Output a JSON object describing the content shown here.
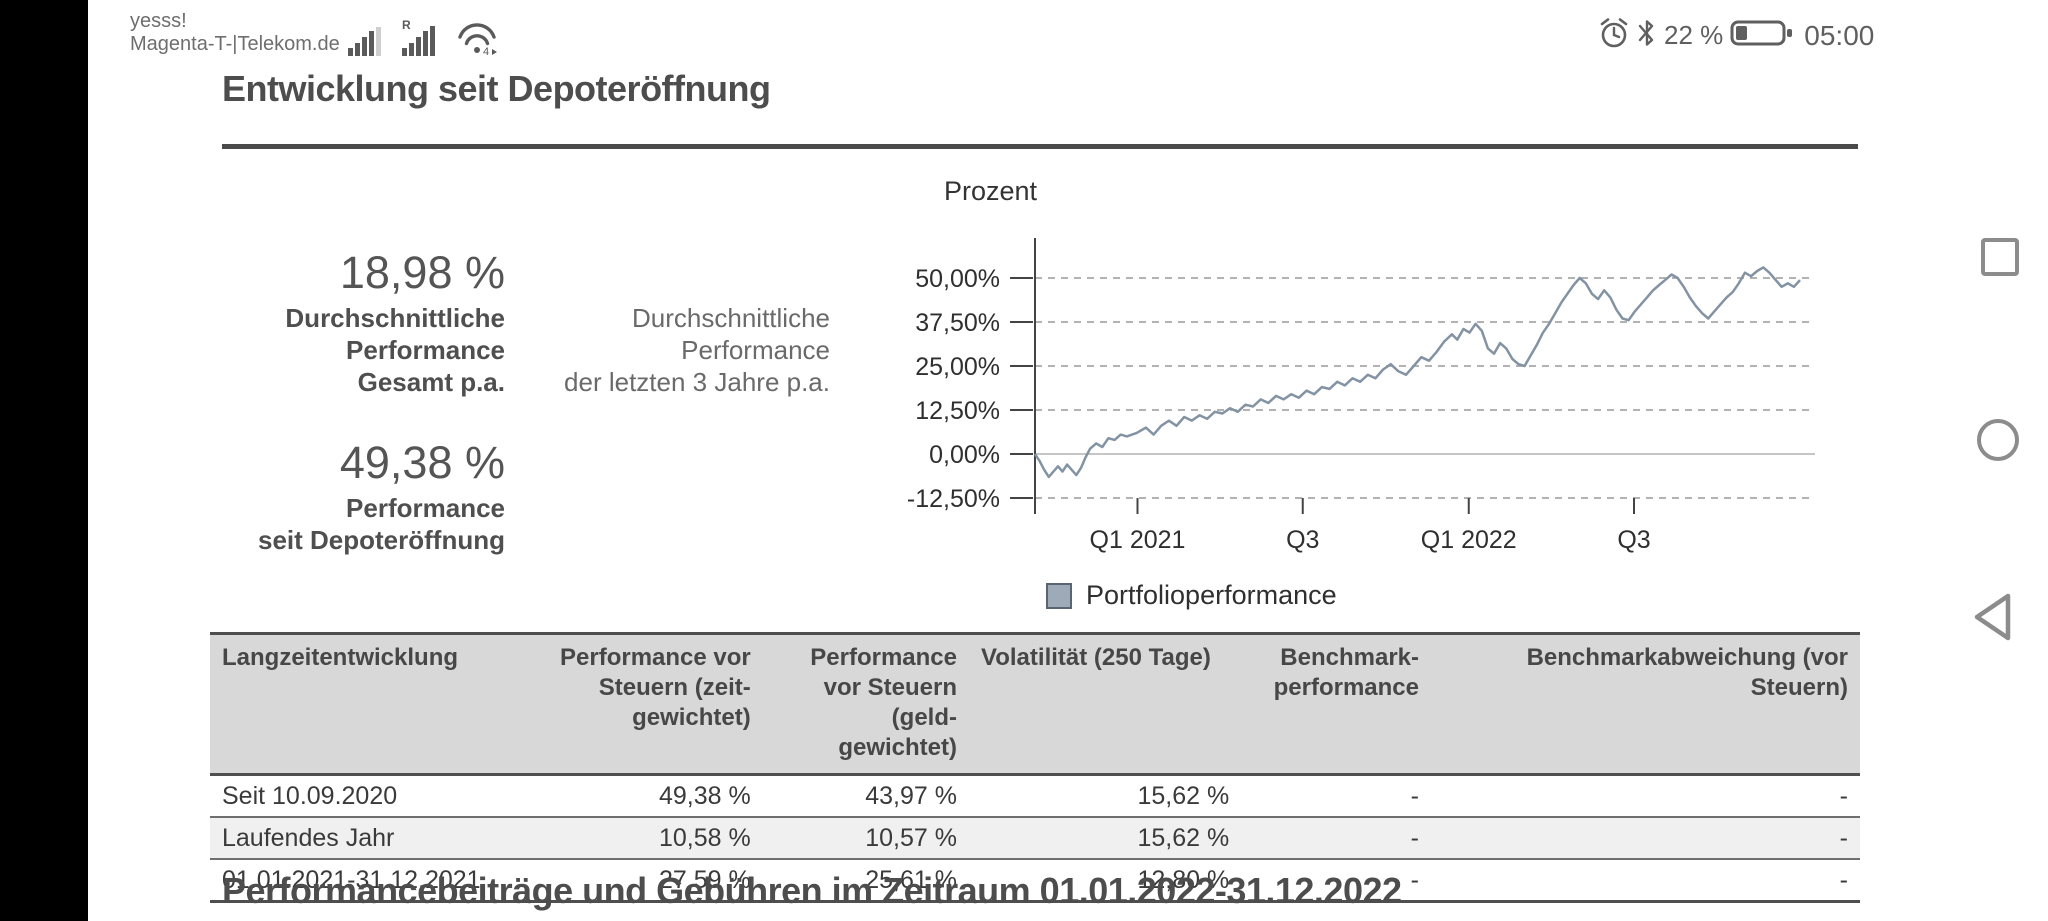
{
  "status_bar": {
    "carrier_line1": "yesss!",
    "carrier_line2": "Magenta-T-|Telekom.de",
    "battery_percent": "22 %",
    "time": "05:00"
  },
  "page": {
    "title": "Entwicklung seit Depoteröffnung",
    "bottom_heading": "Performancebeiträge und Gebühren im Zeitraum 01.01.2022-31.12.2022"
  },
  "summary": {
    "stat1_value": "18,98 %",
    "stat1_label_lines": [
      "Durchschnittliche",
      "Performance",
      "Gesamt p.a."
    ],
    "stat2_label_lines": [
      "Durchschnittliche",
      "Performance",
      "der letzten 3 Jahre p.a."
    ],
    "stat3_value": "49,38 %",
    "stat3_label_lines": [
      "Performance",
      "seit Depoteröffnung"
    ]
  },
  "chart_data": {
    "type": "line",
    "title": "Prozent",
    "ylabel": "Prozent",
    "ylim": [
      -12.5,
      50
    ],
    "grid": true,
    "legend_position": "bottom",
    "y_ticks": [
      {
        "label": "50,00%",
        "value": 50
      },
      {
        "label": "37,50%",
        "value": 37.5
      },
      {
        "label": "25,00%",
        "value": 25
      },
      {
        "label": "12,50%",
        "value": 12.5
      },
      {
        "label": "0,00%",
        "value": 0
      },
      {
        "label": "-12,50%",
        "value": -12.5
      }
    ],
    "x_ticks": [
      {
        "label": "Q1 2021",
        "t": 0.134
      },
      {
        "label": "Q3",
        "t": 0.35
      },
      {
        "label": "Q1 2022",
        "t": 0.567
      },
      {
        "label": "Q3",
        "t": 0.783
      }
    ],
    "legend": {
      "label": "Portfolioperformance",
      "swatch_fill": "#9dabb9",
      "swatch_border": "#5a6570"
    },
    "series": [
      {
        "name": "Portfolioperformance",
        "color": "#8393a3",
        "x_range": [
          "2020-09-10",
          "2022-12-31"
        ],
        "points": [
          [
            0,
            0
          ],
          [
            0.006,
            -2
          ],
          [
            0.012,
            -4.5
          ],
          [
            0.018,
            -6.5
          ],
          [
            0.024,
            -5
          ],
          [
            0.03,
            -3.5
          ],
          [
            0.036,
            -5
          ],
          [
            0.042,
            -3
          ],
          [
            0.048,
            -4.5
          ],
          [
            0.054,
            -6
          ],
          [
            0.06,
            -4
          ],
          [
            0.066,
            -1
          ],
          [
            0.072,
            1.5
          ],
          [
            0.08,
            3
          ],
          [
            0.088,
            2
          ],
          [
            0.096,
            4.5
          ],
          [
            0.104,
            4
          ],
          [
            0.112,
            5.5
          ],
          [
            0.12,
            5
          ],
          [
            0.133,
            6
          ],
          [
            0.145,
            7.5
          ],
          [
            0.155,
            5.5
          ],
          [
            0.165,
            8
          ],
          [
            0.175,
            9.5
          ],
          [
            0.185,
            8
          ],
          [
            0.195,
            10.5
          ],
          [
            0.205,
            9.5
          ],
          [
            0.215,
            11
          ],
          [
            0.225,
            10
          ],
          [
            0.235,
            12
          ],
          [
            0.245,
            11.5
          ],
          [
            0.255,
            13
          ],
          [
            0.265,
            12
          ],
          [
            0.275,
            14
          ],
          [
            0.285,
            13.5
          ],
          [
            0.295,
            15.5
          ],
          [
            0.305,
            14.5
          ],
          [
            0.315,
            16.5
          ],
          [
            0.325,
            15.5
          ],
          [
            0.335,
            17
          ],
          [
            0.345,
            16
          ],
          [
            0.355,
            18
          ],
          [
            0.365,
            17
          ],
          [
            0.375,
            19
          ],
          [
            0.385,
            18.5
          ],
          [
            0.395,
            20.5
          ],
          [
            0.405,
            19.5
          ],
          [
            0.415,
            21.5
          ],
          [
            0.425,
            20.5
          ],
          [
            0.435,
            22.5
          ],
          [
            0.445,
            21.5
          ],
          [
            0.455,
            24
          ],
          [
            0.465,
            25.5
          ],
          [
            0.475,
            23.5
          ],
          [
            0.485,
            22.5
          ],
          [
            0.495,
            25
          ],
          [
            0.505,
            27.5
          ],
          [
            0.515,
            26.5
          ],
          [
            0.525,
            29
          ],
          [
            0.535,
            32
          ],
          [
            0.545,
            34
          ],
          [
            0.552,
            32.5
          ],
          [
            0.56,
            35.5
          ],
          [
            0.568,
            34.5
          ],
          [
            0.576,
            37
          ],
          [
            0.584,
            35
          ],
          [
            0.592,
            30
          ],
          [
            0.6,
            28.5
          ],
          [
            0.608,
            31.5
          ],
          [
            0.616,
            30
          ],
          [
            0.624,
            27
          ],
          [
            0.632,
            25.5
          ],
          [
            0.64,
            25
          ],
          [
            0.648,
            28
          ],
          [
            0.656,
            31
          ],
          [
            0.664,
            34.5
          ],
          [
            0.672,
            37
          ],
          [
            0.68,
            40
          ],
          [
            0.688,
            43
          ],
          [
            0.696,
            45.5
          ],
          [
            0.704,
            48
          ],
          [
            0.712,
            50
          ],
          [
            0.72,
            48.5
          ],
          [
            0.728,
            45.5
          ],
          [
            0.736,
            44
          ],
          [
            0.744,
            46.5
          ],
          [
            0.752,
            44.5
          ],
          [
            0.76,
            41
          ],
          [
            0.768,
            38.5
          ],
          [
            0.776,
            38
          ],
          [
            0.784,
            40.5
          ],
          [
            0.792,
            42.5
          ],
          [
            0.8,
            44.5
          ],
          [
            0.808,
            46.5
          ],
          [
            0.816,
            48
          ],
          [
            0.824,
            49.5
          ],
          [
            0.832,
            51
          ],
          [
            0.84,
            50
          ],
          [
            0.848,
            47.5
          ],
          [
            0.856,
            44.5
          ],
          [
            0.864,
            42
          ],
          [
            0.872,
            40
          ],
          [
            0.88,
            38.5
          ],
          [
            0.888,
            40.5
          ],
          [
            0.896,
            42.5
          ],
          [
            0.904,
            44.5
          ],
          [
            0.912,
            46
          ],
          [
            0.92,
            48.5
          ],
          [
            0.928,
            51.5
          ],
          [
            0.936,
            50.5
          ],
          [
            0.944,
            52
          ],
          [
            0.952,
            53
          ],
          [
            0.96,
            51.5
          ],
          [
            0.968,
            49.5
          ],
          [
            0.976,
            47.5
          ],
          [
            0.984,
            48.5
          ],
          [
            0.992,
            47.5
          ],
          [
            1,
            49.4
          ]
        ]
      }
    ]
  },
  "table": {
    "headers": [
      "Langzeitentwicklung",
      "Performance vor Steuern (zeit-gewichtet)",
      "Performance vor Steuern (geld-gewichtet)",
      "Volatilität (250 Tage)",
      "Benchmark-performance",
      "Benchmarkabweichung (vor Steuern)"
    ],
    "rows": [
      [
        "Seit 10.09.2020",
        "49,38 %",
        "43,97 %",
        "15,62 %",
        "-",
        "-"
      ],
      [
        "Laufendes Jahr",
        "10,58 %",
        "10,57 %",
        "15,62 %",
        "-",
        "-"
      ],
      [
        "01.01.2021-31.12.2021",
        "27,59 %",
        "25,61 %",
        "12,80 %",
        "-",
        "-"
      ]
    ]
  }
}
